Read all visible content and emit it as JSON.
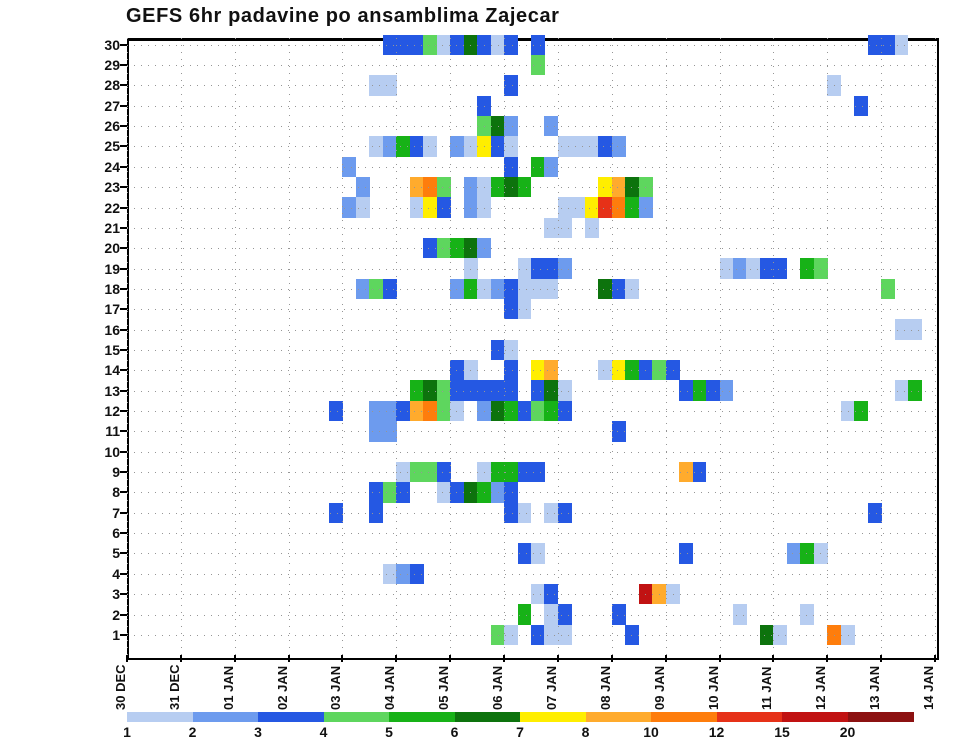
{
  "title": "GEFS 6hr padavine po ansamblima Zajecar",
  "chart_data": {
    "type": "heatmap",
    "title": "GEFS 6hr padavine po ansamblima Zajecar",
    "xlabel": "",
    "ylabel": "",
    "grid": "dotted",
    "y_ticks": [
      "30",
      "29",
      "28",
      "27",
      "26",
      "25",
      "24",
      "23",
      "22",
      "21",
      "20",
      "19",
      "18",
      "17",
      "16",
      "15",
      "14",
      "13",
      "12",
      "11",
      "10",
      "9",
      "8",
      "7",
      "6",
      "5",
      "4",
      "3",
      "2",
      "1"
    ],
    "x_ticks": [
      "30 DEC",
      "31 DEC",
      "01 JAN",
      "02 JAN",
      "03 JAN",
      "04 JAN",
      "05 JAN",
      "06 JAN",
      "07 JAN",
      "08 JAN",
      "09 JAN",
      "10 JAN",
      "11 JAN",
      "12 JAN",
      "13 JAN",
      "14 JAN"
    ],
    "columns_per_day": 4,
    "n_cols": 60,
    "n_rows": 30,
    "legend": {
      "position": "bottom",
      "labels": [
        "1",
        "2",
        "3",
        "4",
        "5",
        "6",
        "7",
        "8",
        "10",
        "12",
        "15",
        "20"
      ],
      "colors": [
        "#b7cdf1",
        "#6d9bee",
        "#2558e3",
        "#5ed65e",
        "#17b217",
        "#0d730d",
        "#ffee00",
        "#ffab2d",
        "#fe7d0c",
        "#e63118",
        "#c11212",
        "#8c1111"
      ]
    },
    "cells": [
      [
        30,
        19,
        2
      ],
      [
        30,
        20,
        2
      ],
      [
        30,
        21,
        2
      ],
      [
        30,
        22,
        3
      ],
      [
        30,
        23,
        0
      ],
      [
        30,
        24,
        2
      ],
      [
        30,
        25,
        5
      ],
      [
        30,
        26,
        2
      ],
      [
        30,
        27,
        0
      ],
      [
        30,
        28,
        2
      ],
      [
        30,
        30,
        2
      ],
      [
        30,
        55,
        2
      ],
      [
        30,
        56,
        2
      ],
      [
        30,
        57,
        0
      ],
      [
        29,
        30,
        3
      ],
      [
        28,
        18,
        0
      ],
      [
        28,
        19,
        0
      ],
      [
        28,
        28,
        2
      ],
      [
        28,
        52,
        0
      ],
      [
        27,
        26,
        2
      ],
      [
        27,
        54,
        2
      ],
      [
        26,
        26,
        3
      ],
      [
        26,
        27,
        5
      ],
      [
        26,
        28,
        1
      ],
      [
        26,
        31,
        1
      ],
      [
        25,
        18,
        0
      ],
      [
        25,
        19,
        1
      ],
      [
        25,
        20,
        4
      ],
      [
        25,
        21,
        2
      ],
      [
        25,
        22,
        0
      ],
      [
        25,
        24,
        1
      ],
      [
        25,
        25,
        0
      ],
      [
        25,
        26,
        6
      ],
      [
        25,
        27,
        2
      ],
      [
        25,
        28,
        0
      ],
      [
        25,
        32,
        0
      ],
      [
        25,
        33,
        0
      ],
      [
        25,
        34,
        0
      ],
      [
        25,
        35,
        2
      ],
      [
        25,
        36,
        1
      ],
      [
        24,
        16,
        1
      ],
      [
        24,
        28,
        2
      ],
      [
        24,
        30,
        4
      ],
      [
        24,
        31,
        1
      ],
      [
        23,
        17,
        1
      ],
      [
        23,
        21,
        7
      ],
      [
        23,
        22,
        8
      ],
      [
        23,
        23,
        3
      ],
      [
        23,
        25,
        1
      ],
      [
        23,
        26,
        0
      ],
      [
        23,
        27,
        4
      ],
      [
        23,
        28,
        5
      ],
      [
        23,
        29,
        4
      ],
      [
        23,
        35,
        6
      ],
      [
        23,
        36,
        7
      ],
      [
        23,
        37,
        5
      ],
      [
        23,
        38,
        3
      ],
      [
        22,
        16,
        1
      ],
      [
        22,
        17,
        0
      ],
      [
        22,
        21,
        0
      ],
      [
        22,
        22,
        6
      ],
      [
        22,
        23,
        2
      ],
      [
        22,
        25,
        1
      ],
      [
        22,
        26,
        0
      ],
      [
        22,
        32,
        0
      ],
      [
        22,
        33,
        0
      ],
      [
        22,
        34,
        6
      ],
      [
        22,
        35,
        9
      ],
      [
        22,
        36,
        8
      ],
      [
        22,
        37,
        4
      ],
      [
        22,
        38,
        1
      ],
      [
        21,
        31,
        0
      ],
      [
        21,
        32,
        0
      ],
      [
        21,
        34,
        0
      ],
      [
        20,
        22,
        2
      ],
      [
        20,
        23,
        3
      ],
      [
        20,
        24,
        4
      ],
      [
        20,
        25,
        5
      ],
      [
        20,
        26,
        1
      ],
      [
        19,
        25,
        0
      ],
      [
        19,
        29,
        0
      ],
      [
        19,
        30,
        2
      ],
      [
        19,
        31,
        2
      ],
      [
        19,
        32,
        1
      ],
      [
        19,
        44,
        0
      ],
      [
        19,
        45,
        1
      ],
      [
        19,
        46,
        0
      ],
      [
        19,
        47,
        2
      ],
      [
        19,
        48,
        2
      ],
      [
        19,
        50,
        4
      ],
      [
        19,
        51,
        3
      ],
      [
        18,
        17,
        1
      ],
      [
        18,
        18,
        3
      ],
      [
        18,
        19,
        2
      ],
      [
        18,
        24,
        1
      ],
      [
        18,
        25,
        4
      ],
      [
        18,
        26,
        0
      ],
      [
        18,
        27,
        1
      ],
      [
        18,
        28,
        2
      ],
      [
        18,
        29,
        0
      ],
      [
        18,
        30,
        0
      ],
      [
        18,
        31,
        0
      ],
      [
        18,
        35,
        5
      ],
      [
        18,
        36,
        2
      ],
      [
        18,
        37,
        0
      ],
      [
        18,
        56,
        3
      ],
      [
        17,
        28,
        2
      ],
      [
        17,
        29,
        0
      ],
      [
        16,
        57,
        0
      ],
      [
        16,
        58,
        0
      ],
      [
        15,
        27,
        2
      ],
      [
        15,
        28,
        0
      ],
      [
        14,
        24,
        2
      ],
      [
        14,
        25,
        0
      ],
      [
        14,
        28,
        2
      ],
      [
        14,
        30,
        6
      ],
      [
        14,
        31,
        7
      ],
      [
        14,
        35,
        0
      ],
      [
        14,
        36,
        6
      ],
      [
        14,
        37,
        4
      ],
      [
        14,
        38,
        2
      ],
      [
        14,
        39,
        3
      ],
      [
        14,
        40,
        2
      ],
      [
        13,
        21,
        4
      ],
      [
        13,
        22,
        5
      ],
      [
        13,
        23,
        3
      ],
      [
        13,
        24,
        2
      ],
      [
        13,
        25,
        2
      ],
      [
        13,
        26,
        2
      ],
      [
        13,
        27,
        2
      ],
      [
        13,
        28,
        2
      ],
      [
        13,
        30,
        2
      ],
      [
        13,
        31,
        5
      ],
      [
        13,
        32,
        0
      ],
      [
        13,
        41,
        2
      ],
      [
        13,
        42,
        4
      ],
      [
        13,
        43,
        2
      ],
      [
        13,
        44,
        1
      ],
      [
        13,
        57,
        0
      ],
      [
        13,
        58,
        4
      ],
      [
        12,
        15,
        2
      ],
      [
        12,
        18,
        1
      ],
      [
        12,
        19,
        1
      ],
      [
        12,
        20,
        2
      ],
      [
        12,
        21,
        7
      ],
      [
        12,
        22,
        8
      ],
      [
        12,
        23,
        3
      ],
      [
        12,
        24,
        0
      ],
      [
        12,
        26,
        1
      ],
      [
        12,
        27,
        5
      ],
      [
        12,
        28,
        4
      ],
      [
        12,
        29,
        2
      ],
      [
        12,
        30,
        3
      ],
      [
        12,
        31,
        4
      ],
      [
        12,
        32,
        2
      ],
      [
        12,
        53,
        0
      ],
      [
        12,
        54,
        4
      ],
      [
        11,
        18,
        1
      ],
      [
        11,
        19,
        1
      ],
      [
        11,
        36,
        2
      ],
      [
        9,
        20,
        0
      ],
      [
        9,
        21,
        3
      ],
      [
        9,
        22,
        3
      ],
      [
        9,
        23,
        2
      ],
      [
        9,
        26,
        0
      ],
      [
        9,
        27,
        4
      ],
      [
        9,
        28,
        4
      ],
      [
        9,
        29,
        2
      ],
      [
        9,
        30,
        2
      ],
      [
        9,
        41,
        7
      ],
      [
        9,
        42,
        2
      ],
      [
        8,
        18,
        2
      ],
      [
        8,
        19,
        3
      ],
      [
        8,
        20,
        2
      ],
      [
        8,
        23,
        0
      ],
      [
        8,
        24,
        2
      ],
      [
        8,
        25,
        5
      ],
      [
        8,
        26,
        4
      ],
      [
        8,
        27,
        1
      ],
      [
        8,
        28,
        2
      ],
      [
        7,
        15,
        2
      ],
      [
        7,
        18,
        2
      ],
      [
        7,
        28,
        2
      ],
      [
        7,
        29,
        0
      ],
      [
        7,
        31,
        0
      ],
      [
        7,
        32,
        2
      ],
      [
        7,
        55,
        2
      ],
      [
        5,
        29,
        2
      ],
      [
        5,
        30,
        0
      ],
      [
        5,
        41,
        2
      ],
      [
        5,
        49,
        1
      ],
      [
        5,
        50,
        4
      ],
      [
        5,
        51,
        0
      ],
      [
        4,
        19,
        0
      ],
      [
        4,
        20,
        1
      ],
      [
        4,
        21,
        2
      ],
      [
        3,
        30,
        0
      ],
      [
        3,
        31,
        2
      ],
      [
        3,
        38,
        10
      ],
      [
        3,
        39,
        7
      ],
      [
        3,
        40,
        0
      ],
      [
        2,
        29,
        4
      ],
      [
        2,
        31,
        0
      ],
      [
        2,
        32,
        2
      ],
      [
        2,
        36,
        2
      ],
      [
        2,
        45,
        0
      ],
      [
        2,
        50,
        0
      ],
      [
        1,
        27,
        3
      ],
      [
        1,
        28,
        0
      ],
      [
        1,
        30,
        2
      ],
      [
        1,
        31,
        0
      ],
      [
        1,
        32,
        0
      ],
      [
        1,
        37,
        2
      ],
      [
        1,
        47,
        5
      ],
      [
        1,
        48,
        0
      ],
      [
        1,
        52,
        8
      ],
      [
        1,
        53,
        0
      ]
    ]
  }
}
